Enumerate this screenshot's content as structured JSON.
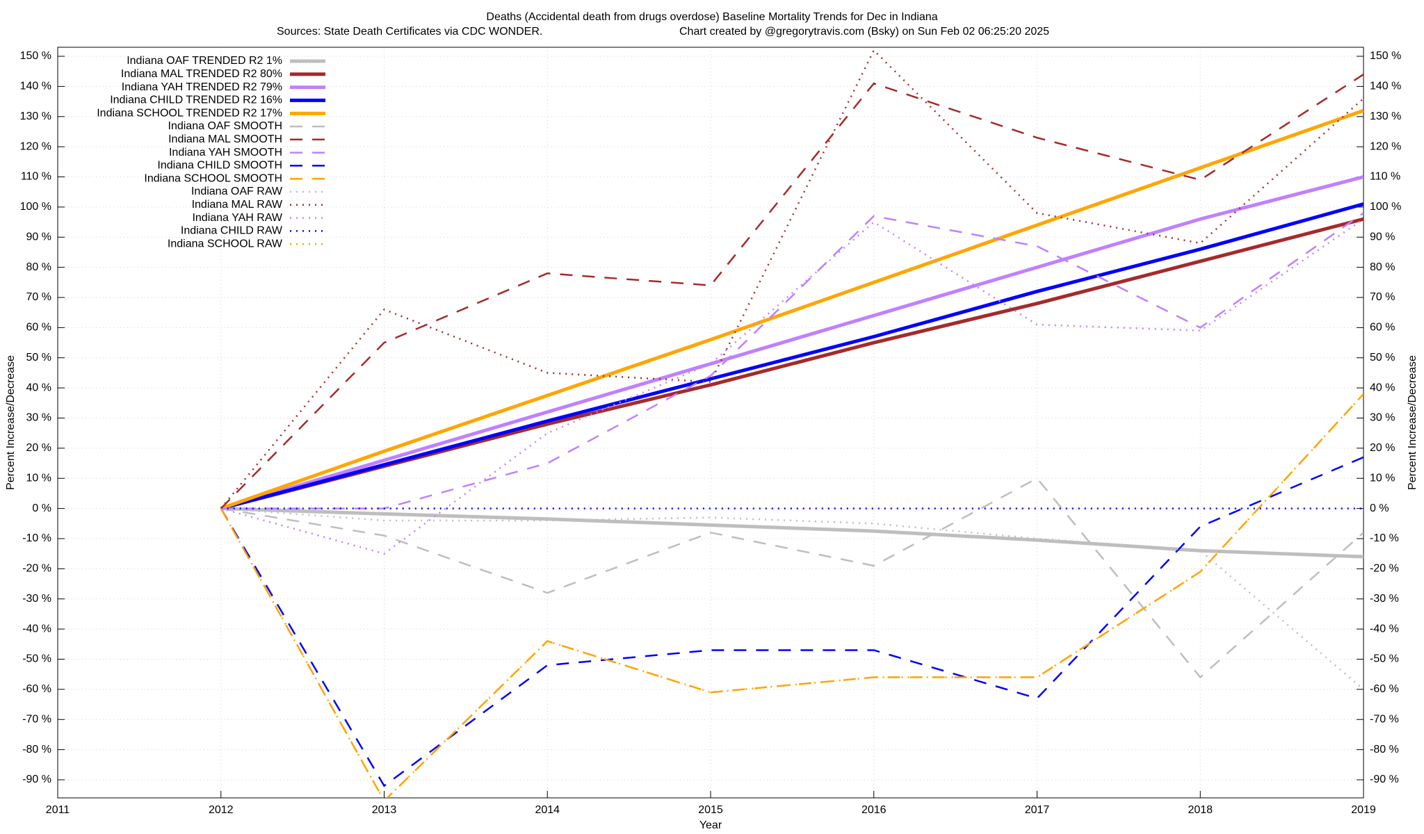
{
  "chart_data": {
    "type": "line",
    "title": "Deaths (Accidental death from drugs overdose)  Baseline Mortality Trends for Dec in Indiana",
    "subtitle_left": "Sources: State Death Certificates via CDC WONDER.",
    "subtitle_right": "Chart created by @gregorytravis.com (Bsky) on Sun Feb 02 06:25:20 2025",
    "xlabel": "Year",
    "ylabel": "Percent Increase/Decrease",
    "x": [
      2012,
      2013,
      2014,
      2015,
      2016,
      2017,
      2018,
      2019
    ],
    "xlim": [
      2011,
      2019
    ],
    "xticks": [
      2011,
      2012,
      2013,
      2014,
      2015,
      2016,
      2017,
      2018,
      2019
    ],
    "ylim": [
      -96,
      153
    ],
    "yticks": [
      {
        "value": -90,
        "label": "-90 %"
      },
      {
        "value": -80,
        "label": "-80 %"
      },
      {
        "value": -70,
        "label": "-70 %"
      },
      {
        "value": -60,
        "label": "-60 %"
      },
      {
        "value": -50,
        "label": "-50 %"
      },
      {
        "value": -40,
        "label": "-40 %"
      },
      {
        "value": -30,
        "label": "-30 %"
      },
      {
        "value": -20,
        "label": "-20 %"
      },
      {
        "value": -10,
        "label": "-10 %"
      },
      {
        "value": 0,
        "label": "0 %"
      },
      {
        "value": 10,
        "label": "10 %"
      },
      {
        "value": 20,
        "label": "20 %"
      },
      {
        "value": 30,
        "label": "30 %"
      },
      {
        "value": 40,
        "label": "40 %"
      },
      {
        "value": 50,
        "label": "50 %"
      },
      {
        "value": 60,
        "label": "60 %"
      },
      {
        "value": 70,
        "label": "70 %"
      },
      {
        "value": 80,
        "label": "80 %"
      },
      {
        "value": 90,
        "label": "90 %"
      },
      {
        "value": 100,
        "label": "100 %"
      },
      {
        "value": 110,
        "label": "110 %"
      },
      {
        "value": 120,
        "label": "120 %"
      },
      {
        "value": 130,
        "label": "130 %"
      },
      {
        "value": 140,
        "label": "140 %"
      },
      {
        "value": 150,
        "label": "150 %"
      }
    ],
    "grid": true,
    "legend": "top-left",
    "series": [
      {
        "name": "Indiana OAF TRENDED R2   1%",
        "color": "#bebebe",
        "dash": "solid",
        "values": [
          0,
          -1.8,
          -3.5,
          -5.5,
          -7.5,
          -10.5,
          -14,
          -16
        ]
      },
      {
        "name": "Indiana MAL TRENDED R2  80%",
        "color": "#a52a2a",
        "dash": "solid",
        "values": [
          0,
          14,
          28,
          41,
          55,
          68,
          82,
          96
        ]
      },
      {
        "name": "Indiana YAH TRENDED R2  79%",
        "color": "#c080ff",
        "dash": "solid",
        "values": [
          0,
          16,
          32,
          48,
          64,
          80,
          96,
          110
        ]
      },
      {
        "name": "Indiana CHILD TRENDED R2  16%",
        "color": "#0000ff",
        "dash": "solid",
        "values": [
          0,
          14.5,
          29,
          43,
          57,
          72,
          86,
          101
        ]
      },
      {
        "name": "Indiana SCHOOL TRENDED R2  17%",
        "color": "#ffa500",
        "dash": "solid",
        "values": [
          0,
          19,
          37.5,
          56,
          75,
          94,
          113,
          132
        ]
      },
      {
        "name": "Indiana OAF SMOOTH",
        "color": "#bebebe",
        "dash": "dashed",
        "values": [
          0,
          -9,
          -28,
          -8,
          -19,
          10,
          -56,
          -8
        ]
      },
      {
        "name": "Indiana MAL SMOOTH",
        "color": "#a52a2a",
        "dash": "dashed",
        "values": [
          0,
          55,
          78,
          74,
          141,
          123,
          109,
          144
        ]
      },
      {
        "name": "Indiana YAH SMOOTH",
        "color": "#c080ff",
        "dash": "dashed",
        "values": [
          0,
          0,
          15,
          44,
          97,
          87,
          60,
          98
        ]
      },
      {
        "name": "Indiana CHILD SMOOTH",
        "color": "#0000ff",
        "dash": "dashed",
        "values": [
          0,
          -92,
          -52,
          -47,
          -47,
          -63,
          -6,
          17
        ]
      },
      {
        "name": "Indiana SCHOOL SMOOTH",
        "color": "#ffa500",
        "dash": "dashed",
        "values": [
          0,
          -97,
          -44,
          -61,
          -56,
          -56,
          -21,
          38
        ]
      },
      {
        "name": "Indiana OAF RAW",
        "color": "#bebebe",
        "dash": "dotted",
        "values": [
          0,
          -4,
          -4,
          -3,
          -5,
          -10,
          -14,
          -60
        ]
      },
      {
        "name": "Indiana MAL RAW",
        "color": "#a52a2a",
        "dash": "dotted",
        "values": [
          0,
          66,
          45,
          42,
          152,
          98,
          88,
          136
        ]
      },
      {
        "name": "Indiana YAH RAW",
        "color": "#c080ff",
        "dash": "dotted",
        "values": [
          0,
          -15,
          25,
          48,
          95,
          61,
          59,
          96
        ]
      },
      {
        "name": "Indiana CHILD RAW",
        "color": "#0000ff",
        "dash": "dotted",
        "values": [
          0,
          0,
          0,
          0,
          0,
          0,
          0,
          0
        ]
      },
      {
        "name": "Indiana SCHOOL RAW",
        "color": "#ffa500",
        "dash": "dotted",
        "values": [
          0,
          -97,
          -44,
          -61,
          -56,
          -56,
          -21,
          38
        ]
      }
    ]
  }
}
